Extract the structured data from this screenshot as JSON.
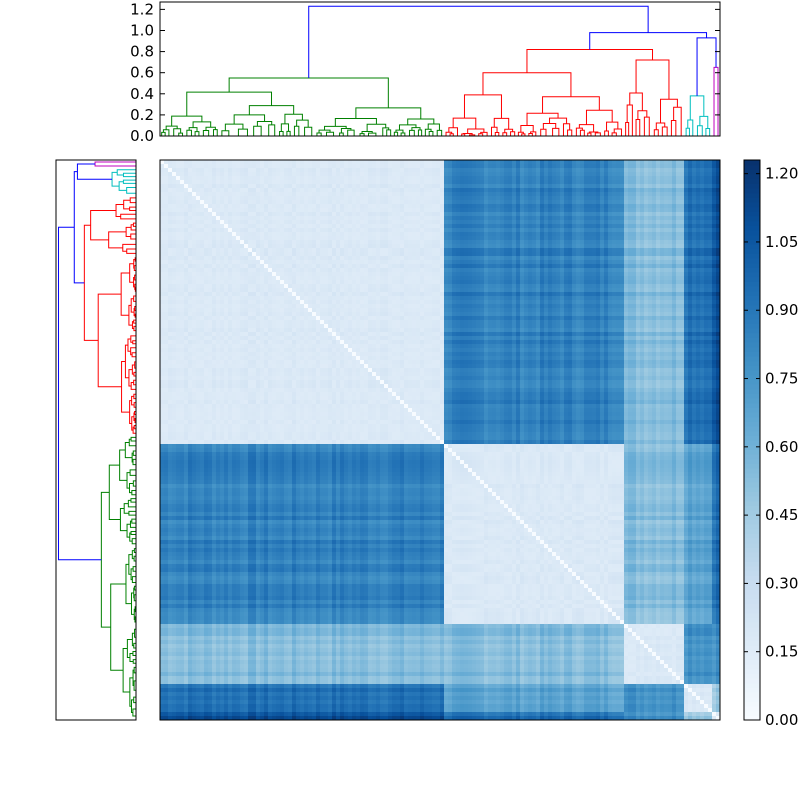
{
  "chart_data": {
    "type": "heatmap",
    "title": "",
    "xlabel": "",
    "ylabel": "",
    "top_dendrogram": {
      "yticks": [
        "0.0",
        "0.2",
        "0.4",
        "0.6",
        "0.8",
        "1.0",
        "1.2"
      ],
      "ylim": [
        0.0,
        1.27
      ],
      "link_colors": {
        "cluster_a": "#008000",
        "cluster_b": "#ff0000",
        "cluster_c": "#00bfbf",
        "cluster_d": "#bf00bf",
        "root": "#0000ff"
      },
      "top_links": [
        {
          "from": "cluster_a",
          "to": "cluster_b",
          "height": 1.23
        },
        {
          "from": "cluster_b",
          "to": "cluster_c_d",
          "height": 0.98
        },
        {
          "from": "cluster_c",
          "to": "cluster_d",
          "height": 0.93
        },
        {
          "from": "cluster_b_left",
          "to": "cluster_b_right",
          "height": 0.82
        },
        {
          "from": "cluster_a_left",
          "to": "cluster_a_right",
          "height": 0.55
        }
      ]
    },
    "side_dendrogram": {
      "link_colors": {
        "cluster_a": "#008000",
        "cluster_b": "#ff0000",
        "cluster_c": "#00bfbf",
        "cluster_d": "#bf00bf",
        "root": "#0000ff"
      }
    },
    "heatmap": {
      "n_items": 140,
      "clusters": [
        {
          "name": "cluster_a",
          "size": 71,
          "color": "#008000"
        },
        {
          "name": "cluster_b",
          "size": 45,
          "color": "#ff0000"
        },
        {
          "name": "cluster_b2",
          "size": 15,
          "color": "#ff0000"
        },
        {
          "name": "cluster_c",
          "size": 7,
          "color": "#00bfbf"
        },
        {
          "name": "cluster_d",
          "size": 2,
          "color": "#bf00bf"
        }
      ],
      "within_cluster_distance": 0.15,
      "between_cluster_distance": {
        "a-b": 0.85,
        "a-b2": 0.55,
        "b-b2": 0.55,
        "a-c": 0.95,
        "b-c": 0.7,
        "a-d": 1.1,
        "b-d": 0.95,
        "c-d": 0.5
      },
      "diagonal_value": 0.0
    },
    "colorbar": {
      "ticks": [
        "0.00",
        "0.15",
        "0.30",
        "0.45",
        "0.60",
        "0.75",
        "0.90",
        "1.05",
        "1.20"
      ],
      "vmin": 0.0,
      "vmax": 1.23,
      "colormap": "Blues",
      "color_low": "#f7fbff",
      "color_high": "#08306b"
    }
  }
}
